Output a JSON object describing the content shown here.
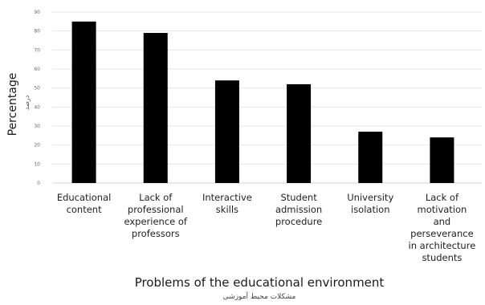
{
  "chart_data": {
    "type": "bar",
    "categories": [
      "Educational content",
      "Lack of professional experience of professors",
      "Interactive skills",
      "Student admission procedure",
      "University isolation",
      "Lack of motivation and perseverance in architecture students"
    ],
    "category_lines": [
      [
        "Educational",
        "content"
      ],
      [
        "Lack of",
        "professional",
        "experience of",
        "professors"
      ],
      [
        "Interactive",
        "skills"
      ],
      [
        "Student",
        "admission",
        "procedure"
      ],
      [
        "University",
        "isolation"
      ],
      [
        "Lack of",
        "motivation",
        "and",
        "perseverance",
        "in architecture",
        "students"
      ]
    ],
    "values": [
      85,
      79,
      54,
      52,
      27,
      24
    ],
    "ylabel": "Percentage",
    "ylabel_secondary": "درصد",
    "xlabel": "Problems of the educational environment",
    "xlabel_secondary": "مشکلات محیط آموزشی",
    "ylim": [
      0,
      90
    ],
    "yticks": [
      0,
      10,
      20,
      30,
      40,
      50,
      60,
      70,
      80,
      90
    ],
    "grid": true,
    "bar_color": "#000000",
    "grid_color": "#e6e6e6"
  }
}
